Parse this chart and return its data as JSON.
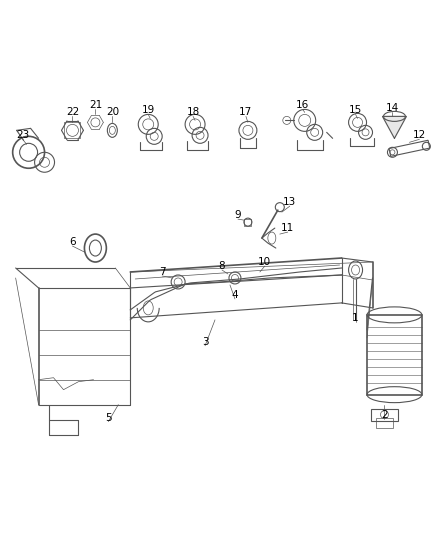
{
  "background_color": "#ffffff",
  "fig_width": 4.38,
  "fig_height": 5.33,
  "dpi": 100,
  "line_color": "#555555",
  "label_color": "#000000",
  "font_size": 7.5
}
